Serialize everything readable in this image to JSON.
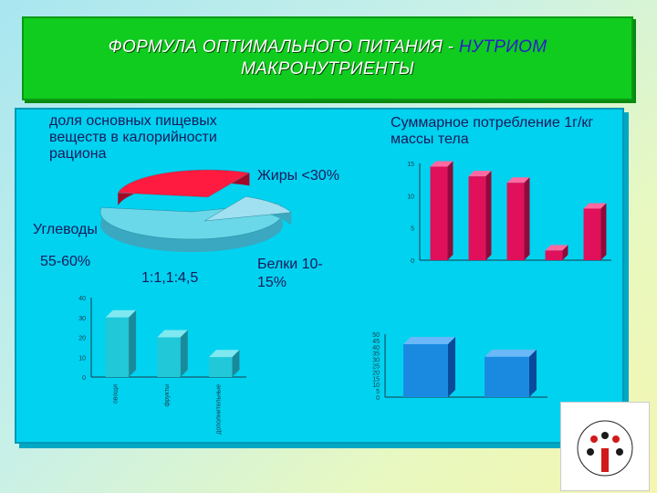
{
  "title": {
    "line1_main": "ФОРМУЛА ОПТИМАЛЬНОГО ПИТАНИЯ - ",
    "line1_accent": "НУТРИОМ",
    "line2": "МАКРОНУТРИЕНТЫ"
  },
  "labels": {
    "left_caption": "доля основных пищевых веществ в калорийности рациона",
    "right_caption": "Суммарное потребление 1г/кг массы тела",
    "fats": "Жиры <30%",
    "carbs": "Углеводы",
    "carbs_value": "55-60%",
    "ratio": "1:1,1:4,5",
    "protein": "Белки 10-15%"
  },
  "colors": {
    "title_band": "#0fcc1e",
    "title_accent": "#2a20c8",
    "panel": "#00d2f0",
    "pie_slice": "#ff1a40",
    "bar_pink": "#e0105a",
    "bar_cyan": "#20c8d8",
    "bar_blue": "#1a8ae0"
  },
  "chart_data": [
    {
      "type": "pie",
      "slices": [
        {
          "label": "Углеводы",
          "value": 57.5
        },
        {
          "label": "Жиры <30%",
          "value": 30
        },
        {
          "label": "Белки 10-15%",
          "value": 12.5
        }
      ]
    },
    {
      "type": "bar",
      "title": "",
      "categories": [
        "",
        "",
        "",
        "",
        ""
      ],
      "values": [
        14.5,
        13,
        12,
        1.5,
        8
      ],
      "yticks": [
        "0",
        "5",
        "10",
        "15"
      ],
      "ylim": [
        0,
        15
      ]
    },
    {
      "type": "bar",
      "categories": [
        "овощи",
        "фрукты",
        "дополнительные"
      ],
      "values": [
        30,
        20,
        10
      ],
      "yticks": [
        "0",
        "10",
        "20",
        "30",
        "40"
      ],
      "ylim": [
        0,
        40
      ]
    },
    {
      "type": "bar",
      "categories": [
        "",
        ""
      ],
      "values": [
        42,
        32
      ],
      "yticks": [
        "0",
        "5",
        "10",
        "15",
        "20",
        "25",
        "30",
        "35",
        "40",
        "45",
        "50"
      ],
      "ylim": [
        0,
        50
      ]
    }
  ]
}
